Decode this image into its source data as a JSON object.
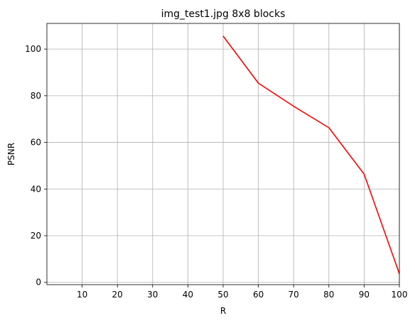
{
  "chart_data": {
    "type": "line",
    "title": "img_test1.jpg 8x8 blocks",
    "xlabel": "R",
    "ylabel": "PSNR",
    "xlim": [
      0,
      100
    ],
    "ylim": [
      -1,
      111
    ],
    "xticks": [
      10,
      20,
      30,
      40,
      50,
      60,
      70,
      80,
      90,
      100
    ],
    "yticks": [
      0,
      20,
      40,
      60,
      80,
      100
    ],
    "grid": true,
    "series": [
      {
        "color": "#ff0000",
        "x": [
          50,
          60,
          70,
          80,
          90,
          100
        ],
        "y": [
          105.6,
          85.4,
          75.5,
          66.3,
          46.4,
          3.7
        ]
      }
    ]
  }
}
